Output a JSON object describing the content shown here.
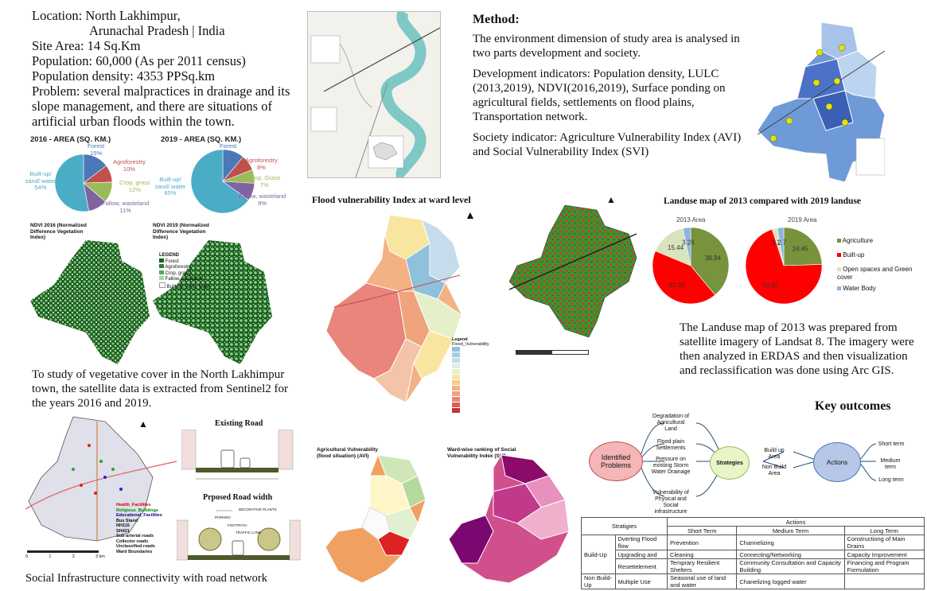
{
  "site_info": {
    "location_line1": "Location: North Lakhimpur,",
    "location_line2": "Arunachal Pradesh | India",
    "site_area": "Site Area: 14 Sq.Km",
    "population": "Population: 60,000 (As per 2011 census)",
    "density": "Population density: 4353 PPSq.km",
    "problem": "Problem: several malpractices in drainage and its slope management, and there are situations of artificial urban floods within the town."
  },
  "method": {
    "heading": "Method:",
    "p1": "The environment dimension of study area is analysed in two parts development and society.",
    "p2": "Development indicators: Population density, LULC (2013,2019), NDVI(2016,2019), Surface ponding on agricultural fields, settlements on flood plains, Transportation network.",
    "p3": "Society indicator: Agriculture Vulnerability Index (AVI) and Social Vulnerability Index (SVI)"
  },
  "area_pies": [
    {
      "title": "2016 - AREA (SQ. KM.)",
      "slices": [
        {
          "label": "Forest",
          "pct": "15%",
          "value": 15,
          "color": "#4a78b8"
        },
        {
          "label": "Agroforestry",
          "pct": "10%",
          "value": 10,
          "color": "#c0504d"
        },
        {
          "label": "Crop, grass",
          "pct": "12%",
          "value": 12,
          "color": "#9bbb59"
        },
        {
          "label": "Fallow, wasteland",
          "pct": "11%",
          "value": 11,
          "color": "#8064a2"
        },
        {
          "label": "Built-up/ sand/ water",
          "pct": "54%",
          "value": 54,
          "color": "#4bacc6"
        }
      ]
    },
    {
      "title": "2019 - AREA (SQ. KM.)",
      "slices": [
        {
          "label": "Forest",
          "pct": "11%",
          "value": 11,
          "color": "#4a78b8"
        },
        {
          "label": "Agroforestry",
          "pct": "8%",
          "value": 8,
          "color": "#c0504d"
        },
        {
          "label": "Crop, Grass",
          "pct": "7%",
          "value": 7,
          "color": "#9bbb59"
        },
        {
          "label": "Fallow, wasteland",
          "pct": "9%",
          "value": 9,
          "color": "#8064a2"
        },
        {
          "label": "Built-up/ sand/ water",
          "pct": "65%",
          "value": 65,
          "color": "#4bacc6"
        }
      ]
    }
  ],
  "ndvi": {
    "title_2016": "NDVI 2016 (Normalized Difference Vegetation Index)",
    "title_2019": "NDVI 2019 (Normalized Difference Vegetation Index)",
    "legend_title": "LEGEND",
    "legend_items": [
      "Forest",
      "Agroforestry",
      "Crop, grass",
      "Fallow, wasteland",
      "Built-up, sand, water"
    ]
  },
  "ndvi_text": "To study of vegetative cover in the North Lakhimpur town, the satellite data is extracted from Sentinel2 for the years 2016 and 2019.",
  "flood": {
    "title": "Flood vulnerability Index at ward level",
    "legend_title": "Legend",
    "legend_sub": "Flood_Vulnerability"
  },
  "landuse": {
    "title": "Landuse map of 2013 compared with 2019 landuse",
    "pie_2013": {
      "label": "2013 Area",
      "values": [
        38.94,
        42.36,
        15.44,
        3.26
      ]
    },
    "pie_2019": {
      "label": "2019 Area",
      "values": [
        24.45,
        70.62,
        2.23,
        2.7
      ]
    },
    "legend": [
      {
        "label": "Agriculture",
        "color": "#77933c"
      },
      {
        "label": "Built-up",
        "color": "#ff0000"
      },
      {
        "label": "Open spaces and Green cover",
        "color": "#d7e4bd"
      },
      {
        "label": "Water Body",
        "color": "#8db3e2"
      }
    ],
    "text": "The Landuse map of 2013 was prepared from satellite imagery of Landsat 8. The imagery were then analyzed in ERDAS and then visualization and reclassification was done using Arc GIS."
  },
  "social_infra": {
    "caption": "Social Infrastructure connectivity with road network",
    "legend": [
      "Health_Facilities",
      "Religious_Buildings",
      "Educational_Facilities",
      "Bus Stand",
      "NH115",
      "SH421",
      "Sub-arterial roads",
      "Collector roads",
      "Unclassified roads",
      "Ward Boundaries"
    ],
    "scale": [
      "0",
      "1",
      "2",
      "3 km"
    ]
  },
  "roads": {
    "existing": "Existing Road",
    "proposed": "Prposed Road width",
    "labels": [
      "DECORATIVE PLANTS",
      "PARKING",
      "FOOTPATH",
      "TRAFFIC LANE"
    ]
  },
  "vulnerability": {
    "avi_title": "Agricultural Vulnerability (flood situation) (AVI)",
    "svi_title": "Ward-wise ranking of Social Vulnerability Index (SVI)"
  },
  "key_outcomes": {
    "heading": "Key outcomes",
    "problems": "Identified Problems",
    "problem_items": [
      "Degradation of Agricultural Land",
      "Flood plain Settlements",
      "Pressure on existing Storm Water Drainage",
      "Vulnerability of Physical and Social infrastructure"
    ],
    "strategies": "Strategies",
    "strategy_items": [
      "Build up Area",
      "Non Build Area"
    ],
    "actions": "Actions",
    "action_items": [
      "Short term",
      "Medium term",
      "Long term"
    ]
  },
  "actions_table": {
    "header_actions": "Actions",
    "header_strategies": "Stratigies",
    "cols": [
      "Short Term",
      "Medium Term",
      "Long Term"
    ],
    "build_up": "Build-Up",
    "non_build": "Non Build-Up",
    "rows": [
      {
        "strategy": "Dverting Flood flow",
        "short": "Prevention",
        "medium": "Channelizing",
        "long": "Constructiong of Main Drains"
      },
      {
        "strategy": "Upgrading and",
        "short": "Cleaning",
        "medium": "Connecting/Networking",
        "long": "Capacity Improvement"
      },
      {
        "strategy": "Resettelement",
        "short": "Temprary Resilient Shelters",
        "medium": "Community Consultation and Capacity Building",
        "long": "Financing and Program Formulation"
      },
      {
        "strategy": "Multiple Use",
        "short": "Seasonal use of land and water",
        "medium": "Chanelizing logged water",
        "long": ""
      }
    ]
  }
}
